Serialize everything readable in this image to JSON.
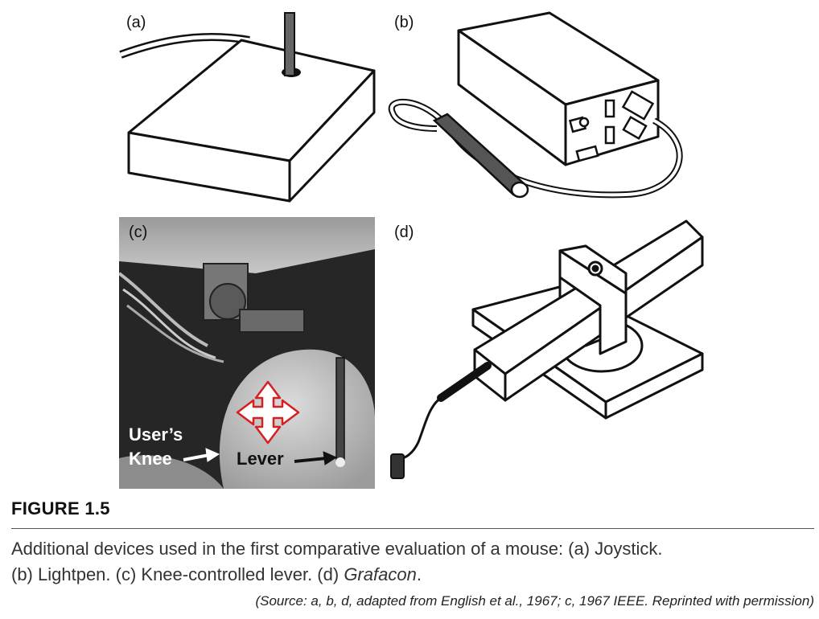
{
  "panels": {
    "a": {
      "label": "(a)",
      "device": "joystick"
    },
    "b": {
      "label": "(b)",
      "device": "lightpen"
    },
    "c": {
      "label": "(c)",
      "device": "knee-controlled-lever",
      "annotations": {
        "knee": "User’s Knee",
        "knee_line1": "User’s",
        "knee_line2": "Knee",
        "lever": "Lever"
      }
    },
    "d": {
      "label": "(d)",
      "device": "grafacon"
    }
  },
  "figure": {
    "label": "FIGURE 1.5",
    "caption_line1": "Additional devices used in the first comparative evaluation of a mouse: (a) Joystick.",
    "caption_line2_prefix": "(b) Lightpen. (c) Knee-controlled lever. (d) ",
    "caption_line2_italic": "Grafacon",
    "caption_line2_suffix": ".",
    "source": "(Source: a, b, d, adapted from English et al., 1967; c, 1967 IEEE. Reprinted with permission)"
  },
  "colors": {
    "ink": "#111111",
    "photo_bg": "#2a2a2a",
    "arrow_red": "#d42020"
  },
  "icons": {
    "direction_arrows": "four-way-arrow-icon"
  }
}
